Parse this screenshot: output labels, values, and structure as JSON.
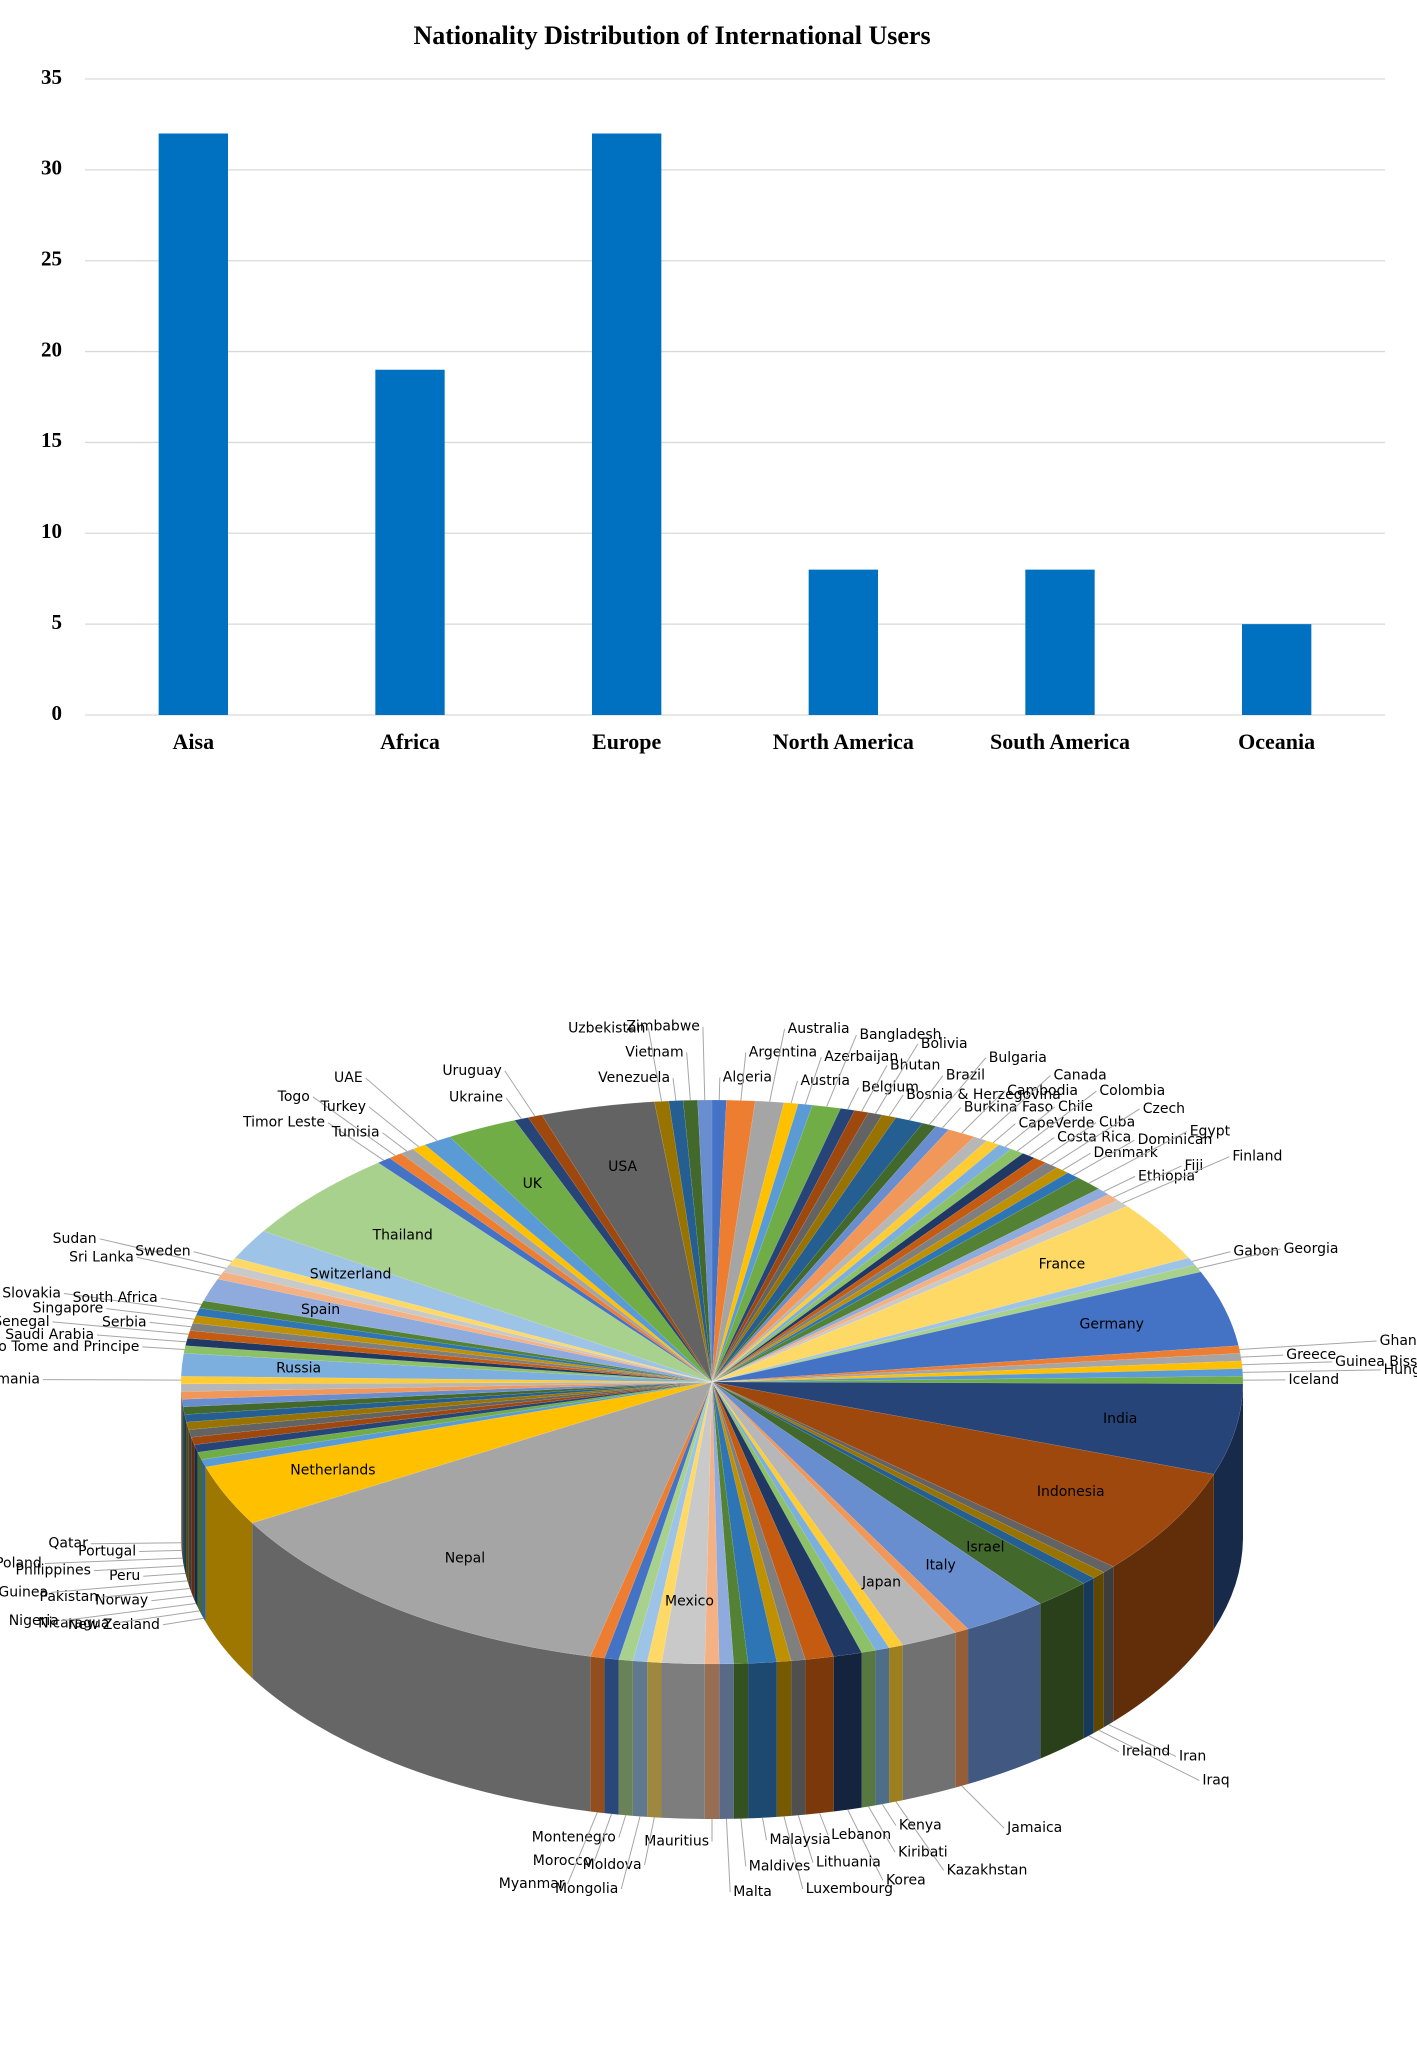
{
  "chart_data": [
    {
      "type": "bar",
      "title": "Nationality Distribution of International Users",
      "categories": [
        "Aisa",
        "Africa",
        "Europe",
        "North America",
        "South America",
        "Oceania"
      ],
      "values": [
        32,
        19,
        32,
        8,
        8,
        5
      ],
      "color": "#0070C0",
      "ylim": [
        0,
        35
      ],
      "yticks": [
        0,
        5,
        10,
        15,
        20,
        25,
        30,
        35
      ],
      "grid": true
    },
    {
      "type": "pie",
      "three_d": true,
      "categories": [
        "Algeria",
        "Argentina",
        "Australia",
        "Austria",
        "Azerbaijan",
        "Bangladesh",
        "Belgium",
        "Bhutan",
        "Bolivia",
        "Bosnia & Herzegovina",
        "Brazil",
        "Bulgaria",
        "Burkina Faso",
        "Cambodia",
        "Canada",
        "CapeVerde",
        "Chile",
        "Colombia",
        "Costa Rica",
        "Cuba",
        "Czech",
        "Denmark",
        "Dominican",
        "Egypt",
        "Ethiopia",
        "Fiji",
        "Finland",
        "France",
        "Gabon",
        "Georgia",
        "Germany",
        "Ghana",
        "Greece",
        "Guinea Bissau",
        "Hungary",
        "Iceland",
        "India",
        "Indonesia",
        "Iran",
        "Iraq",
        "Ireland",
        "Israel",
        "Italy",
        "Jamaica",
        "Japan",
        "Kazakhstan",
        "Kenya",
        "Kiribati",
        "Korea",
        "Lebanon",
        "Lithuania",
        "Luxembourg",
        "Malaysia",
        "Maldives",
        "Malta",
        "Mauritius",
        "Mexico",
        "Moldova",
        "Mongolia",
        "Montenegro",
        "Morocco",
        "Myanmar",
        "Nepal",
        "Netherlands",
        "New Zealand",
        "Nicaragua",
        "Nigeria",
        "Norway",
        "Pakistan",
        "Papua New Guinea",
        "Peru",
        "Philippines",
        "Poland",
        "Portugal",
        "Qatar",
        "Romania",
        "Russia",
        "Sao Tome and Principe",
        "Saudi Arabia",
        "Senegal",
        "Serbia",
        "Singapore",
        "Slovakia",
        "South Africa",
        "Spain",
        "Sri Lanka",
        "Sudan",
        "Sweden",
        "Switzerland",
        "Thailand",
        "Timor Leste",
        "Togo",
        "Tunisia",
        "Turkey",
        "UAE",
        "UK",
        "Ukraine",
        "Uruguay",
        "USA",
        "Uzbekistan",
        "Venezuela",
        "Vietnam",
        "Zimbabwe"
      ],
      "values": [
        1,
        2,
        2,
        1,
        1,
        2,
        1,
        1,
        1,
        1,
        2,
        1,
        1,
        2,
        1,
        1,
        1,
        1,
        1,
        1,
        1,
        1,
        1,
        2,
        1,
        1,
        1,
        8,
        1,
        1,
        10,
        1,
        1,
        1,
        1,
        1,
        12,
        14,
        1,
        1,
        1,
        4,
        6,
        1,
        4,
        1,
        1,
        1,
        2,
        2,
        1,
        1,
        2,
        1,
        1,
        1,
        3,
        1,
        1,
        1,
        1,
        1,
        30,
        8,
        1,
        1,
        1,
        1,
        1,
        1,
        1,
        1,
        1,
        1,
        1,
        1,
        3,
        1,
        1,
        1,
        1,
        1,
        1,
        1,
        3,
        1,
        1,
        1,
        4,
        12,
        1,
        1,
        1,
        1,
        2,
        5,
        1,
        1,
        8,
        1,
        1,
        1,
        1
      ],
      "colors": [
        "#4472C4",
        "#ED7D31",
        "#A5A5A5",
        "#FFC000",
        "#5B9BD5",
        "#70AD47",
        "#264478",
        "#9E480E",
        "#636363",
        "#997300",
        "#255E91",
        "#43682B",
        "#698ED0",
        "#F1975A",
        "#B7B7B7",
        "#FFCD33",
        "#7CAFDD",
        "#8CC168",
        "#203864",
        "#C55A11",
        "#7F7F7F",
        "#BF9000",
        "#2E75B6",
        "#548235",
        "#8FAADC",
        "#F4B183",
        "#C9C9C9",
        "#FFD966",
        "#9DC3E6",
        "#A9D18E"
      ]
    }
  ]
}
